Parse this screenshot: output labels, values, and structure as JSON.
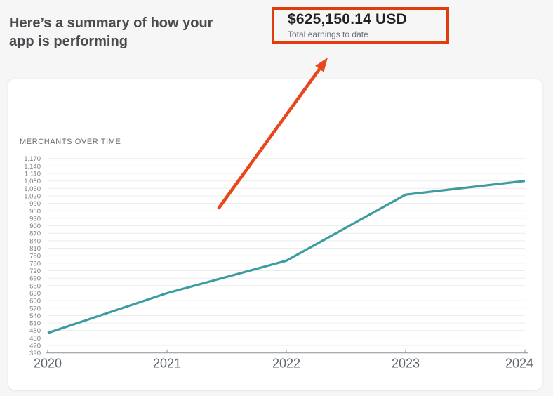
{
  "header": {
    "title_line1": "Here’s a summary of how your",
    "title_line2": "app is performing"
  },
  "highlight": {
    "amount": "$625,150.14 USD",
    "caption": "Total earnings to date",
    "border_color": "#e23c0e"
  },
  "annotation_arrow": {
    "color": "#e8471c"
  },
  "chart_data": {
    "type": "line",
    "title": "MERCHANTS OVER TIME",
    "categories": [
      "2020",
      "2021",
      "2022",
      "2023",
      "2024"
    ],
    "series": [
      {
        "name": "Merchants",
        "values": [
          470,
          630,
          760,
          1025,
          1080
        ]
      }
    ],
    "ylim": [
      390,
      1170
    ],
    "ytick_step": 30,
    "grid": true,
    "legend": "none",
    "line_color": "#3e9c9e",
    "axis_color": "#9b9ea3",
    "grid_color": "#ebeced"
  }
}
